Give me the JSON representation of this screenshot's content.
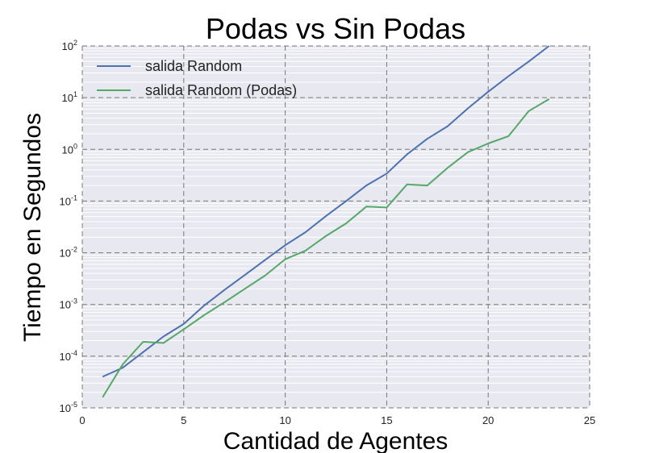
{
  "chart_data": {
    "type": "line",
    "title": "Podas vs Sin Podas",
    "xlabel": "Cantidad de Agentes",
    "ylabel": "Tiempo en Segundos",
    "xlim": [
      0,
      25
    ],
    "ylim": [
      1e-05,
      100
    ],
    "yscale": "log",
    "x_ticks": [
      0,
      5,
      10,
      15,
      20,
      25
    ],
    "y_ticks": [
      {
        "value": 1e-05,
        "base": "10",
        "exp": "-5"
      },
      {
        "value": 0.0001,
        "base": "10",
        "exp": "-4"
      },
      {
        "value": 0.001,
        "base": "10",
        "exp": "-3"
      },
      {
        "value": 0.01,
        "base": "10",
        "exp": "-2"
      },
      {
        "value": 0.1,
        "base": "10",
        "exp": "-1"
      },
      {
        "value": 1,
        "base": "10",
        "exp": "0"
      },
      {
        "value": 10,
        "base": "10",
        "exp": "1"
      },
      {
        "value": 100,
        "base": "10",
        "exp": "2"
      }
    ],
    "grid": true,
    "legend_position": "top-left",
    "background": "#e8e8f0",
    "series": [
      {
        "name": "salida Random",
        "color": "#4c72b0",
        "x": [
          1,
          2,
          3,
          4,
          5,
          6,
          7,
          8,
          9,
          10,
          11,
          12,
          13,
          14,
          15,
          16,
          17,
          18,
          19,
          20,
          21,
          22,
          23
        ],
        "y": [
          4e-05,
          6e-05,
          0.00012,
          0.00024,
          0.00042,
          0.00095,
          0.0019,
          0.0037,
          0.0072,
          0.014,
          0.025,
          0.051,
          0.1,
          0.2,
          0.34,
          0.8,
          1.6,
          2.8,
          6.2,
          13,
          26,
          50,
          100
        ]
      },
      {
        "name": "salida Random (Podas)",
        "color": "#55a868",
        "x": [
          1,
          2,
          3,
          4,
          5,
          6,
          7,
          8,
          9,
          10,
          11,
          12,
          13,
          14,
          15,
          16,
          17,
          18,
          19,
          20,
          21,
          22,
          23
        ],
        "y": [
          1.6e-05,
          7e-05,
          0.00019,
          0.00018,
          0.00033,
          0.00062,
          0.0011,
          0.002,
          0.0036,
          0.0075,
          0.011,
          0.021,
          0.037,
          0.078,
          0.075,
          0.21,
          0.2,
          0.44,
          0.88,
          1.3,
          1.8,
          5.5,
          9.4
        ]
      }
    ]
  }
}
